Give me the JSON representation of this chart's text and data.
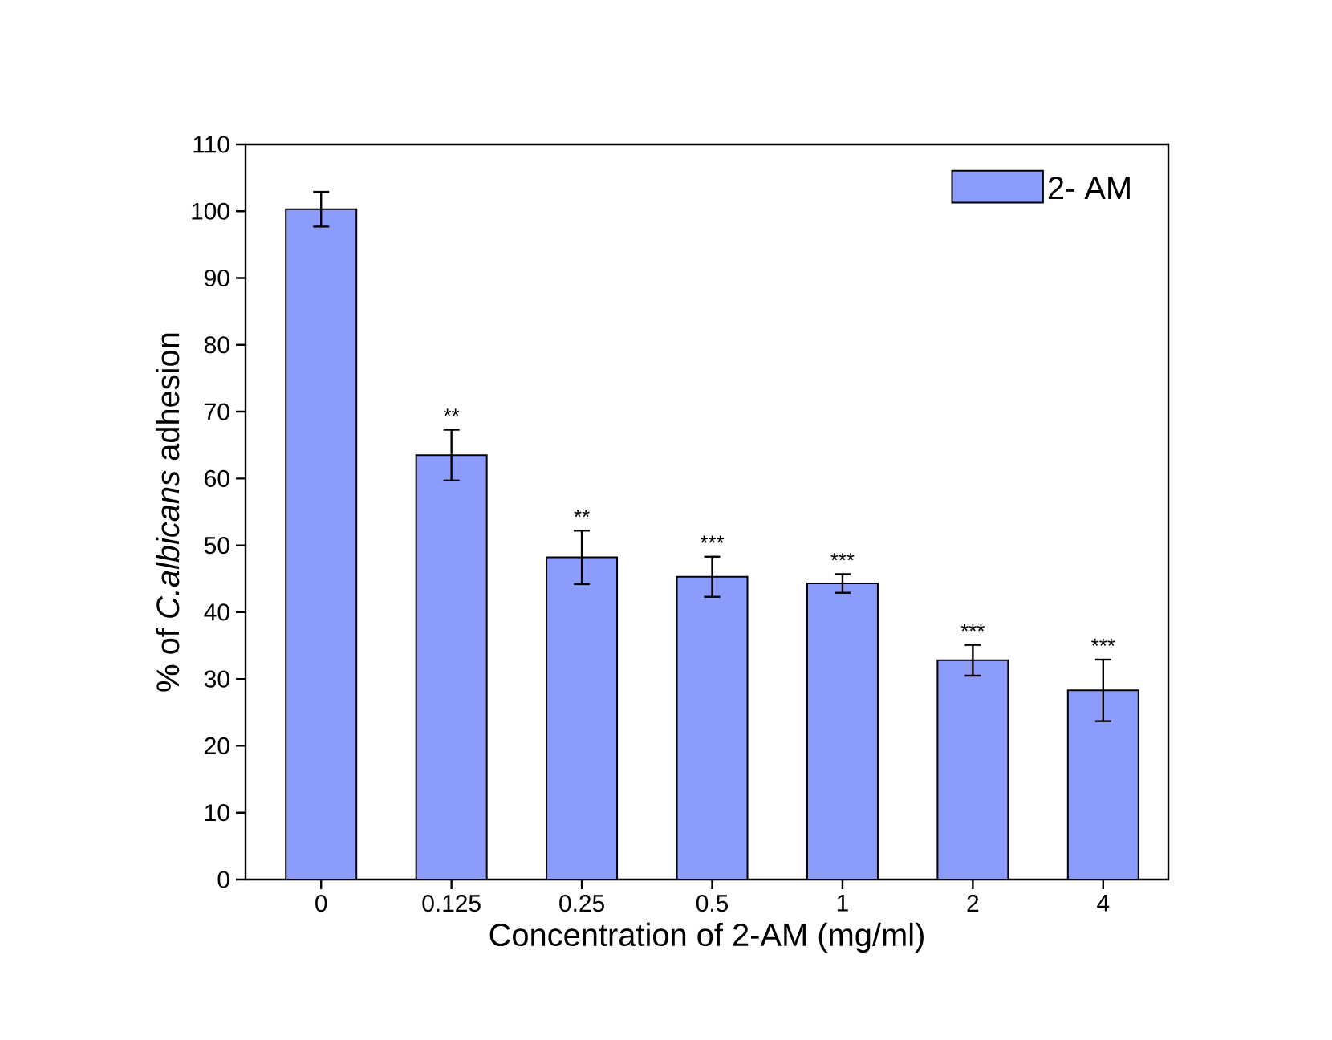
{
  "chart_data": {
    "type": "bar",
    "xlabel": "Concentration of 2-AM  (mg/ml)",
    "ylabel": "% of *C.albicans* adhesion",
    "categories": [
      "0",
      "0.125",
      "0.25",
      "0.5",
      "1",
      "2",
      "4"
    ],
    "series": [
      {
        "name": "2- AM",
        "color": "#8c9cfc",
        "values": [
          100.3,
          63.5,
          48.2,
          45.3,
          44.3,
          32.8,
          28.3
        ],
        "errors": [
          2.6,
          3.8,
          4.0,
          3.0,
          1.4,
          2.3,
          4.6
        ]
      }
    ],
    "ylim": [
      0,
      110
    ],
    "yticks": [
      0,
      10,
      20,
      30,
      40,
      50,
      60,
      70,
      80,
      90,
      100,
      110
    ],
    "legend": "top right",
    "grid": false,
    "annotations": [
      "**",
      "**",
      "***",
      "***",
      "***",
      "***"
    ]
  }
}
